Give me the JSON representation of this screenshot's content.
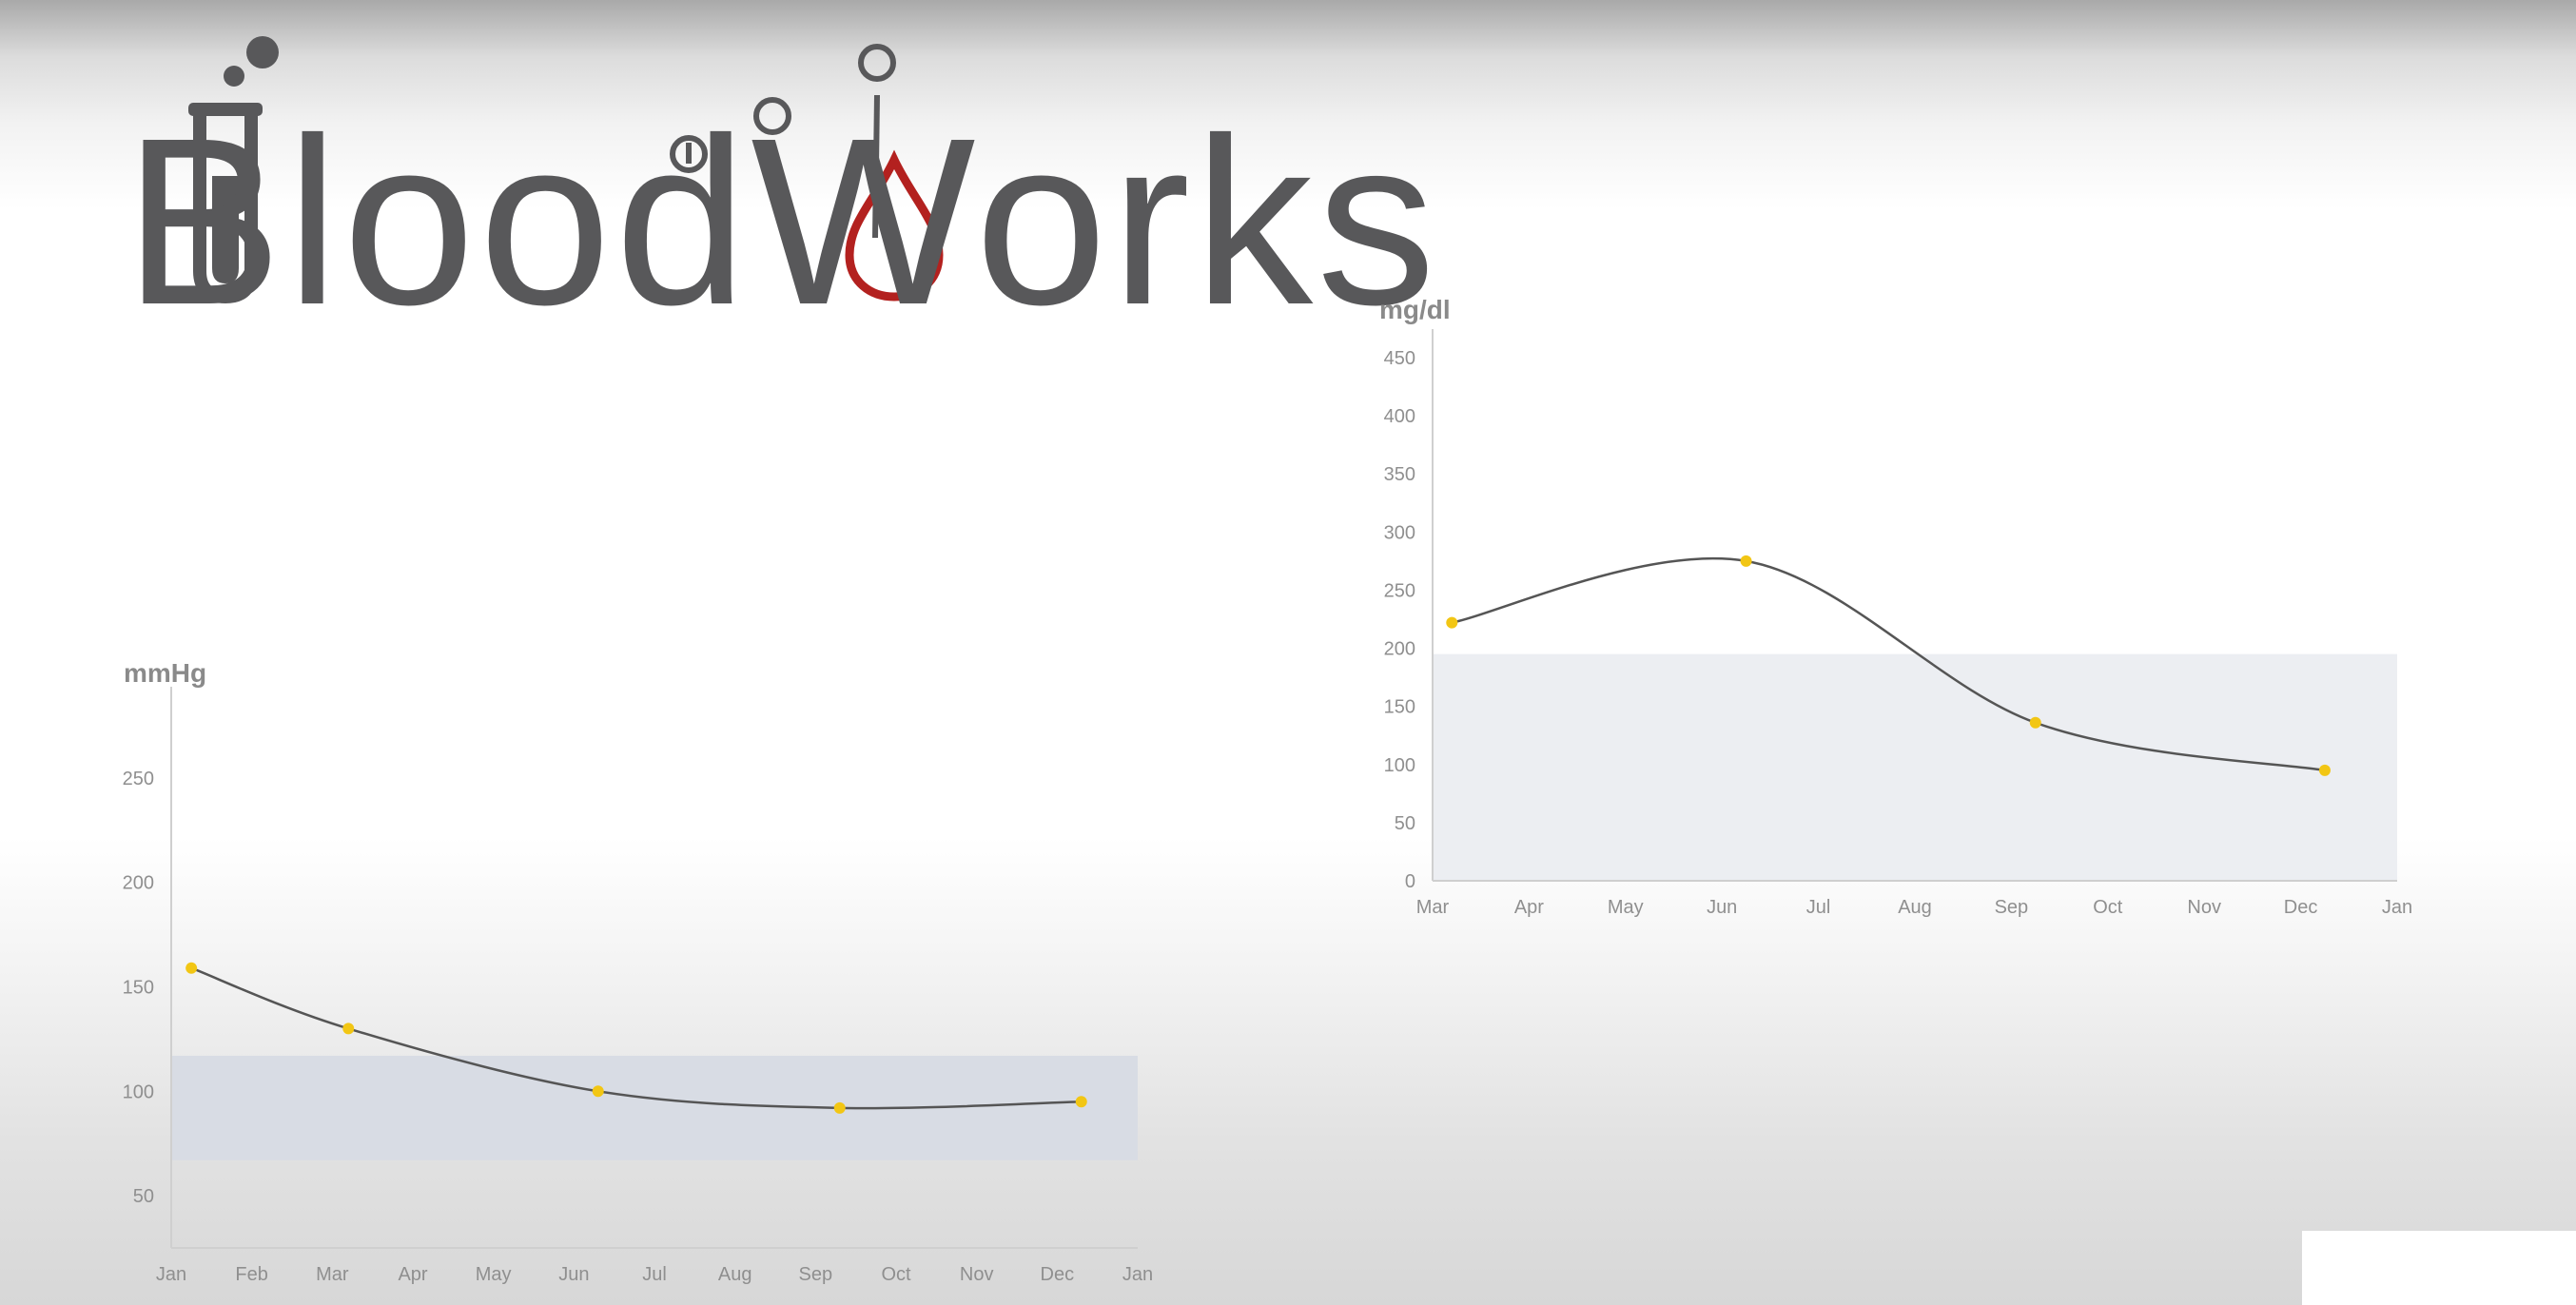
{
  "logo": {
    "text": "BloodWorks",
    "text_color": "#58585a",
    "drop_color": "#b3211f",
    "icons": [
      "test-tube-icon",
      "bubble-icon",
      "blood-drop-icon"
    ]
  },
  "chart_data": [
    {
      "type": "line",
      "ylabel": "mmHg",
      "x_ticks": [
        "Jan",
        "Feb",
        "Mar",
        "Apr",
        "May",
        "Jun",
        "Jul",
        "Aug",
        "Sep",
        "Oct",
        "Nov",
        "Dec",
        "Jan"
      ],
      "y_ticks": [
        50,
        100,
        150,
        200,
        250
      ],
      "ylim": [
        25,
        280
      ],
      "points": [
        {
          "x": 0.25,
          "y": 159
        },
        {
          "x": 2.2,
          "y": 130
        },
        {
          "x": 5.3,
          "y": 100
        },
        {
          "x": 8.3,
          "y": 92
        },
        {
          "x": 11.3,
          "y": 95
        }
      ],
      "normal_range": [
        67,
        117
      ],
      "line_color": "#555555",
      "point_color": "#f2c614",
      "band_color": "#d8dce4",
      "grid": false
    },
    {
      "type": "line",
      "ylabel": "mg/dl",
      "x_ticks": [
        "Mar",
        "Apr",
        "May",
        "Jun",
        "Jul",
        "Aug",
        "Sep",
        "Oct",
        "Nov",
        "Dec",
        "Jan"
      ],
      "y_ticks": [
        0,
        50,
        100,
        150,
        200,
        250,
        300,
        350,
        400,
        450
      ],
      "ylim": [
        0,
        450
      ],
      "points": [
        {
          "x": 0.2,
          "y": 222
        },
        {
          "x": 3.25,
          "y": 275
        },
        {
          "x": 6.25,
          "y": 136
        },
        {
          "x": 9.25,
          "y": 95
        }
      ],
      "normal_range": [
        0,
        195
      ],
      "line_color": "#555555",
      "point_color": "#f2c614",
      "band_color": "#eceef2",
      "grid": false
    }
  ]
}
